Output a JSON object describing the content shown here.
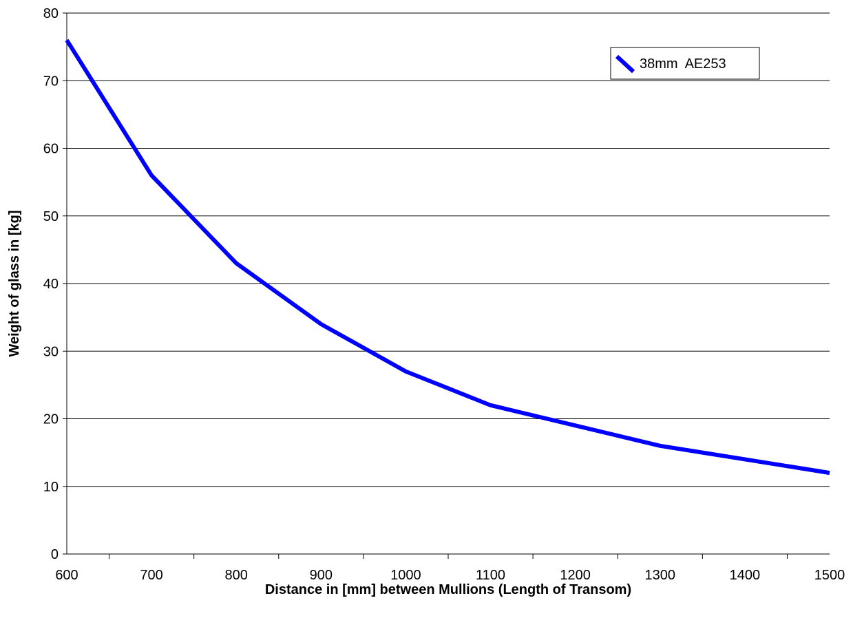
{
  "chart_data": {
    "type": "line",
    "title": "",
    "xlabel": "Distance in [mm] between Mullions (Length of Transom)",
    "ylabel": "Weight of glass in [kg]",
    "x_tick_labels": [
      "600",
      "700",
      "800",
      "900",
      "1000",
      "1100",
      "1200",
      "1300",
      "1400",
      "1500"
    ],
    "y_tick_labels": [
      "0",
      "10",
      "20",
      "30",
      "40",
      "50",
      "60",
      "70",
      "80"
    ],
    "x": [
      600,
      700,
      800,
      900,
      1000,
      1100,
      1200,
      1300,
      1400,
      1500
    ],
    "xlim": [
      600,
      1500
    ],
    "ylim": [
      0,
      80
    ],
    "grid": "horizontal",
    "legend_position": "top-right",
    "series": [
      {
        "name": "38mm  AE253",
        "color": "#0000ff",
        "values": [
          76,
          56,
          43,
          34,
          27,
          22,
          19,
          16,
          14,
          12
        ]
      }
    ]
  }
}
